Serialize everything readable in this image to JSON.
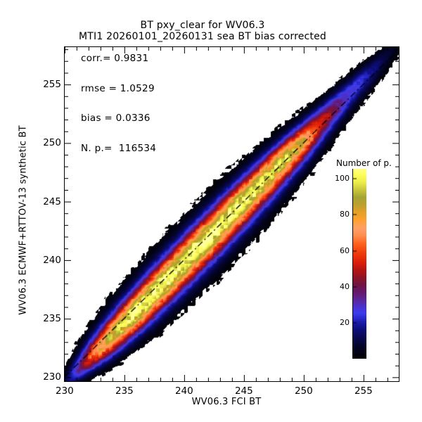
{
  "title": {
    "line1": "BT pxy_clear for WV06.3",
    "line2": "MTI1 20260101_20260131 sea BT bias corrected"
  },
  "stats": {
    "lines": [
      "corr.= 0.9831",
      "rmse = 1.0529",
      "bias = 0.0336",
      "N. p.=  116534"
    ],
    "corr": 0.9831,
    "rmse": 1.0529,
    "bias": 0.0336,
    "n_points": 116534
  },
  "axes": {
    "x": {
      "label": "WV06.3 FCI BT",
      "major_ticks": [
        230,
        235,
        240,
        245,
        250,
        255
      ],
      "major_tick_labels": [
        "230",
        "235",
        "240",
        "245",
        "250",
        "255"
      ],
      "minor_step": 1,
      "range": [
        229.95,
        258.0
      ]
    },
    "y": {
      "label": "WV06.3 ECMWF+RTTOV-13 synthetic BT",
      "major_ticks": [
        230,
        235,
        240,
        245,
        250,
        255
      ],
      "major_tick_labels": [
        "230",
        "235",
        "240",
        "245",
        "250",
        "255"
      ],
      "minor_step": 1,
      "range": [
        229.6,
        258.25
      ]
    }
  },
  "colorbar": {
    "label": "Number of p.",
    "tick_values": [
      100,
      80,
      60,
      40,
      20
    ],
    "vmin": 0,
    "vmax": 105.6,
    "stops": [
      [
        0.0,
        "#000000"
      ],
      [
        0.05,
        "#03031f"
      ],
      [
        0.1,
        "#070747"
      ],
      [
        0.15,
        "#0d0d78"
      ],
      [
        0.19,
        "#1c1cb0"
      ],
      [
        0.235,
        "#3c3cee"
      ],
      [
        0.27,
        "#4b32cd"
      ],
      [
        0.3,
        "#5a28a0"
      ],
      [
        0.34,
        "#641970"
      ],
      [
        0.38,
        "#6e1446"
      ],
      [
        0.42,
        "#8c1428"
      ],
      [
        0.46,
        "#b41414"
      ],
      [
        0.5,
        "#dc1e0a"
      ],
      [
        0.55,
        "#f03c0a"
      ],
      [
        0.6,
        "#ff641e"
      ],
      [
        0.64,
        "#ff8c50"
      ],
      [
        0.68,
        "#ffa066"
      ],
      [
        0.72,
        "#ffa032"
      ],
      [
        0.76,
        "#e6a028"
      ],
      [
        0.8,
        "#bea02e"
      ],
      [
        0.84,
        "#a4a432"
      ],
      [
        0.88,
        "#c8c83c"
      ],
      [
        0.92,
        "#eeee4a"
      ],
      [
        0.96,
        "#ffff5c"
      ],
      [
        1.0,
        "#ffff9b"
      ]
    ]
  },
  "chart_data": {
    "type": "heatmap",
    "title": "BT pxy_clear for WV06.3",
    "subtitle": "MTI1 20260101_20260131 sea BT bias corrected",
    "xlabel": "WV06.3 FCI BT",
    "ylabel": "WV06.3 ECMWF+RTTOV-13 synthetic BT",
    "xlim": [
      229.95,
      258.0
    ],
    "ylim": [
      229.6,
      258.25
    ],
    "value_label": "Number of p.",
    "value_max": 107,
    "ridge_u": [
      229.6,
      230.4,
      231.0,
      231.8,
      232.6,
      233.6,
      234.6,
      235.6,
      237.0,
      238.5,
      240.0,
      241.5,
      243.0,
      244.5,
      246.0,
      247.5,
      248.6,
      249.4,
      250.2,
      251.0,
      251.8,
      252.6,
      253.4,
      254.2,
      255.0,
      255.8,
      256.6,
      257.4,
      258.1,
      258.5
    ],
    "ridge_peak": [
      8,
      22,
      38,
      58,
      76,
      90,
      98,
      106,
      104,
      107,
      104,
      107,
      103,
      105,
      100,
      97,
      95,
      90,
      80,
      65,
      54,
      42,
      34,
      28,
      24,
      19,
      13,
      8,
      4,
      2
    ],
    "sigma_u": [
      229.6,
      231.0,
      232.5,
      234.0,
      236.0,
      238.0,
      240.0,
      242.0,
      244.0,
      246.0,
      248.0,
      250.0,
      252.0,
      254.0,
      256.0,
      257.5,
      258.5
    ],
    "sigma_w": [
      0.5,
      0.72,
      0.95,
      1.12,
      1.25,
      1.33,
      1.38,
      1.38,
      1.36,
      1.3,
      1.2,
      1.06,
      0.93,
      0.82,
      0.7,
      0.55,
      0.42
    ],
    "axis_slope": 1.045,
    "axis_pivot": 243.5,
    "bin_size": 0.3,
    "core_noise": 0.22,
    "edge_noise": 0.35,
    "fit_line": {
      "style": "dash-dot",
      "color": "#000000",
      "slope": 1.0,
      "intercept": 0.0336
    },
    "stats": {
      "corr": 0.9831,
      "rmse": 1.0529,
      "bias": 0.0336,
      "n_points": 116534
    }
  }
}
